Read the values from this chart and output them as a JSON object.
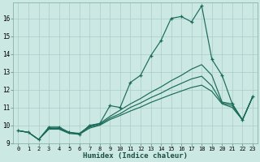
{
  "xlabel": "Humidex (Indice chaleur)",
  "bg_color": "#cce8e2",
  "grid_color": "#aacccc",
  "line_color": "#1a6b5a",
  "xlim_min": -0.5,
  "xlim_max": 23.5,
  "ylim_min": 9.0,
  "ylim_max": 16.9,
  "yticks": [
    9,
    10,
    11,
    12,
    13,
    14,
    15,
    16
  ],
  "xticks": [
    0,
    1,
    2,
    3,
    4,
    5,
    6,
    7,
    8,
    9,
    10,
    11,
    12,
    13,
    14,
    15,
    16,
    17,
    18,
    19,
    20,
    21,
    22,
    23
  ],
  "line_main": [
    9.7,
    9.6,
    9.2,
    9.9,
    9.9,
    9.6,
    9.5,
    10.0,
    10.1,
    11.1,
    11.0,
    12.4,
    12.8,
    13.9,
    14.75,
    16.0,
    16.1,
    15.8,
    16.7,
    13.7,
    12.8,
    11.2,
    10.3,
    11.6
  ],
  "line2": [
    9.7,
    9.6,
    9.2,
    9.85,
    9.85,
    9.6,
    9.55,
    9.95,
    10.1,
    10.5,
    10.85,
    11.2,
    11.5,
    11.85,
    12.15,
    12.5,
    12.8,
    13.15,
    13.4,
    12.8,
    11.3,
    11.2,
    10.3,
    11.6
  ],
  "line3": [
    9.7,
    9.6,
    9.2,
    9.82,
    9.82,
    9.58,
    9.53,
    9.9,
    10.05,
    10.4,
    10.65,
    11.0,
    11.25,
    11.55,
    11.8,
    12.1,
    12.35,
    12.6,
    12.75,
    12.2,
    11.25,
    11.1,
    10.3,
    11.6
  ],
  "line4": [
    9.7,
    9.6,
    9.2,
    9.78,
    9.78,
    9.54,
    9.49,
    9.84,
    10.0,
    10.32,
    10.55,
    10.8,
    11.02,
    11.28,
    11.5,
    11.72,
    11.92,
    12.12,
    12.25,
    11.9,
    11.2,
    11.0,
    10.3,
    11.6
  ]
}
